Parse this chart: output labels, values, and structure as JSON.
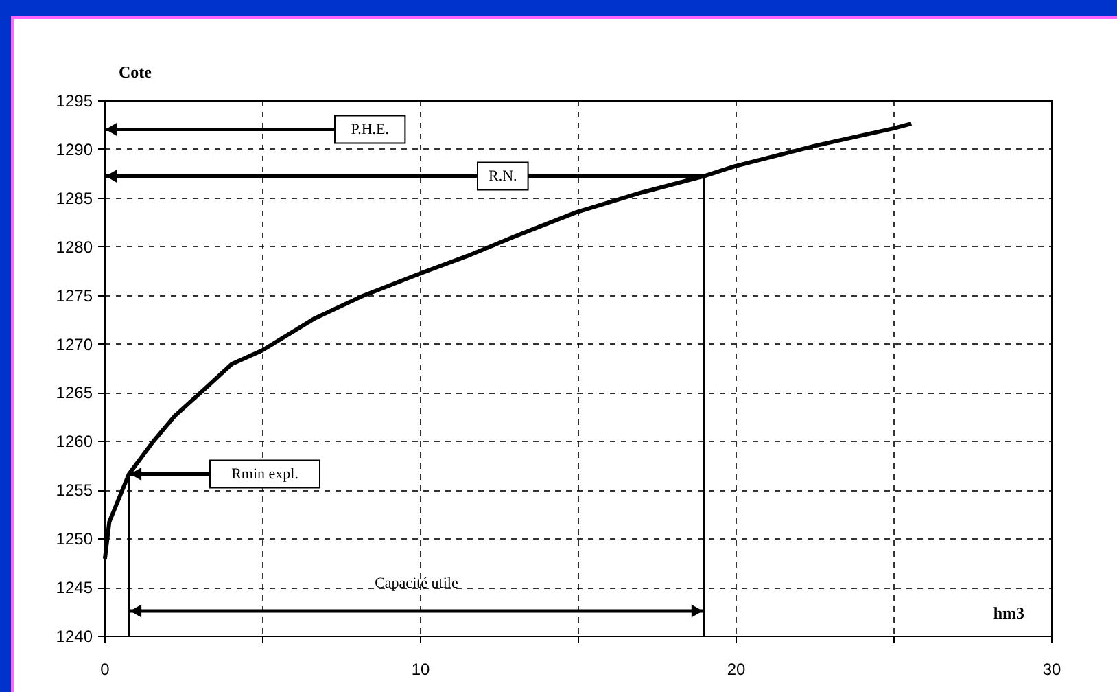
{
  "chart_data": {
    "type": "line",
    "ylabel": "Cote",
    "xlabel": "hm3",
    "xlim": [
      0,
      30
    ],
    "ylim": [
      1240,
      1295
    ],
    "xticks": [
      0,
      {
        "value": 5,
        "label": null
      },
      10,
      {
        "value": 15,
        "label": null
      },
      20,
      {
        "value": 25,
        "label": null
      },
      30
    ],
    "yticks": [
      1240,
      1245,
      1250,
      1255,
      1260,
      1265,
      1270,
      1275,
      1280,
      1285,
      1290,
      1295
    ],
    "grid": true,
    "line_style": "solid",
    "series": [
      {
        "color": "#000000",
        "x": [
          0.02,
          0.16,
          0.78,
          1.54,
          2.24,
          3.2,
          4.04,
          5.0,
          6.67,
          8.19,
          10.0,
          11.5,
          13.0,
          14.96,
          17.0,
          19.0,
          19.96,
          22.5,
          25.0,
          25.57
        ],
        "values": [
          1247.9,
          1251.7,
          1256.6,
          1259.9,
          1262.6,
          1265.4,
          1267.9,
          1269.3,
          1272.6,
          1274.9,
          1277.2,
          1279.0,
          1281.0,
          1283.5,
          1285.5,
          1287.2,
          1288.2,
          1290.3,
          1292.1,
          1292.6
        ]
      }
    ],
    "ref_lines": [
      {
        "axis": "y",
        "value": 1292,
        "label": "P.H.E."
      },
      {
        "axis": "y",
        "value": 1287.2,
        "label": "R.N."
      },
      {
        "axis": "y",
        "value": 1256.6,
        "label": "Rmin expl."
      },
      {
        "axis": "x",
        "value": 0.78
      },
      {
        "axis": "x",
        "value": 19
      }
    ],
    "annotations": [
      "Capacité utile"
    ]
  }
}
